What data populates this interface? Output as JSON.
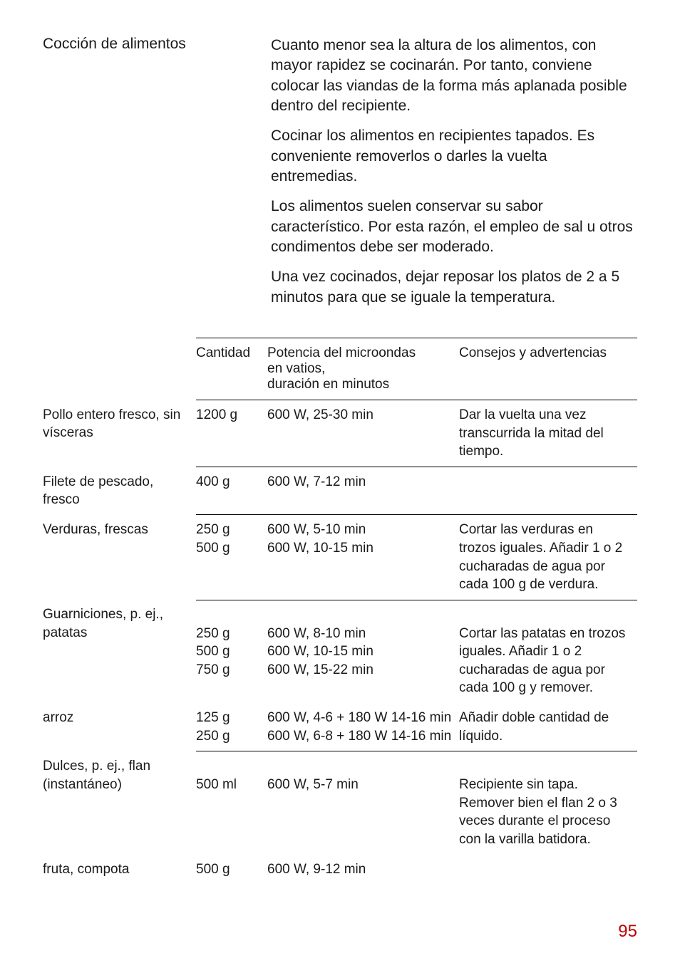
{
  "header": {
    "title": "Cocción de alimentos",
    "paragraphs": [
      "Cuanto menor sea la altura de los alimentos, con mayor rapidez se cocinarán. Por tanto, conviene colocar las viandas de la forma más aplanada posible dentro del recipiente.",
      "Cocinar los alimentos en recipientes tapados. Es conveniente removerlos o darles la vuelta entremedias.",
      "Los alimentos suelen conservar su sabor característico. Por esta razón, el empleo de sal u otros condimentos debe ser moderado.",
      "Una vez cocinados, dejar reposar los platos de 2 a 5 minutos para que se iguale la temperatura."
    ]
  },
  "table": {
    "headers": {
      "c1": "",
      "c2": "Cantidad",
      "c3": "Potencia del microondas\nen vatios,\nduración en minutos",
      "c4": "Consejos y advertencias"
    },
    "rows": [
      {
        "sep": true,
        "c1": "Pollo entero fresco, sin vísceras",
        "c2": "1200 g",
        "c3": "600 W, 25-30 min",
        "c4": "Dar la vuelta una vez transcurrida la mitad del tiempo."
      },
      {
        "sep": true,
        "c1": "Filete de pescado, fresco",
        "c2": "400 g",
        "c3": "600 W, 7-12 min",
        "c4": ""
      },
      {
        "sep": true,
        "c1": "Verduras, frescas",
        "c2": "250 g\n500 g",
        "c3": "600 W, 5-10 min\n600 W, 10-15 min",
        "c4": "Cortar las verduras en trozos iguales. Añadir 1 o 2 cucharadas de agua por cada 100 g de verdura."
      },
      {
        "sep": true,
        "c1": "Guarniciones, p. ej., patatas",
        "c2": "\n250 g\n500 g\n750 g",
        "c3": "\n600 W, 8-10 min\n600 W, 10-15 min\n600 W, 15-22 min",
        "c4": "\nCortar las patatas en trozos iguales. Añadir 1 o 2 cucharadas de agua por cada 100 g y remover.\n"
      },
      {
        "sep": false,
        "c1": "arroz",
        "c2": "125 g\n250 g",
        "c3": "600 W, 4-6 + 180 W 14-16 min\n600 W, 6-8 + 180 W 14-16 min",
        "c4": "Añadir doble cantidad de líquido."
      },
      {
        "sep": true,
        "c1": "Dulces, p. ej., flan (instantáneo)",
        "c2": "\n500 ml",
        "c3": "\n600 W, 5-7 min",
        "c4": "\nRecipiente sin tapa. Remover bien el flan 2 o 3 veces durante el proceso con la varilla batidora."
      },
      {
        "sep": false,
        "c1": "fruta, compota",
        "c2": "500 g",
        "c3": "600 W, 9-12 min",
        "c4": ""
      }
    ]
  },
  "page_number": "95",
  "colors": {
    "text": "#1a1a1a",
    "page_num": "#c00000",
    "rule": "#000000",
    "bg": "#ffffff"
  }
}
